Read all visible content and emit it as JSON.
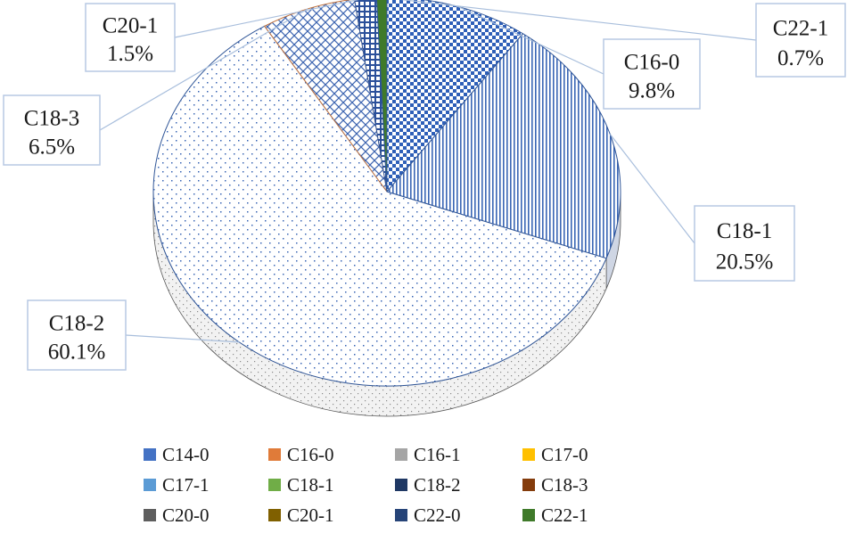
{
  "chart_data": {
    "type": "pie",
    "title": "",
    "slices": [
      {
        "label": "C14-0",
        "value": 0.0,
        "color": "#4472c4",
        "pattern": "none"
      },
      {
        "label": "C16-0",
        "value": 9.8,
        "color": "#2e5fb8",
        "pattern": "checker"
      },
      {
        "label": "C16-1",
        "value": 0.0,
        "color": "#a5a5a5",
        "pattern": "none"
      },
      {
        "label": "C17-0",
        "value": 0.0,
        "color": "#ffc000",
        "pattern": "none"
      },
      {
        "label": "C17-1",
        "value": 0.0,
        "color": "#5b9bd5",
        "pattern": "none"
      },
      {
        "label": "C18-1",
        "value": 20.5,
        "color": "#3a66b5",
        "pattern": "vlines"
      },
      {
        "label": "C18-2",
        "value": 60.1,
        "color": "#2f5aa8",
        "pattern": "dots"
      },
      {
        "label": "C18-3",
        "value": 6.5,
        "color": "#3c64b0",
        "pattern": "lattice"
      },
      {
        "label": "C20-0",
        "value": 0.0,
        "color": "#5e5e5e",
        "pattern": "none"
      },
      {
        "label": "C20-1",
        "value": 1.5,
        "color": "#2a4f9a",
        "pattern": "brick"
      },
      {
        "label": "C22-0",
        "value": 0.0,
        "color": "#264478",
        "pattern": "none"
      },
      {
        "label": "C22-1",
        "value": 0.7,
        "color": "#3f7a2a",
        "pattern": "solid"
      }
    ],
    "data_labels": [
      {
        "name": "C20-1",
        "pct": "1.5%"
      },
      {
        "name": "C22-1",
        "pct": "0.7%"
      },
      {
        "name": "C16-0",
        "pct": "9.8%"
      },
      {
        "name": "C18-3",
        "pct": "6.5%"
      },
      {
        "name": "C18-1",
        "pct": "20.5%"
      },
      {
        "name": "C18-2",
        "pct": "60.1%"
      }
    ],
    "legend": {
      "placement": "bottom",
      "entries": [
        {
          "label": "C14-0",
          "color": "#4472c4"
        },
        {
          "label": "C16-0",
          "color": "#e07b39"
        },
        {
          "label": "C16-1",
          "color": "#a5a5a5"
        },
        {
          "label": "C17-0",
          "color": "#ffc000"
        },
        {
          "label": "C17-1",
          "color": "#5b9bd5"
        },
        {
          "label": "C18-1",
          "color": "#70ad47"
        },
        {
          "label": "C18-2",
          "color": "#1f3864"
        },
        {
          "label": "C18-3",
          "color": "#843c0c"
        },
        {
          "label": "C20-0",
          "color": "#5e5e5e"
        },
        {
          "label": "C20-1",
          "color": "#806000"
        },
        {
          "label": "C22-0",
          "color": "#264478"
        },
        {
          "label": "C22-1",
          "color": "#3f7a2a"
        }
      ]
    }
  }
}
